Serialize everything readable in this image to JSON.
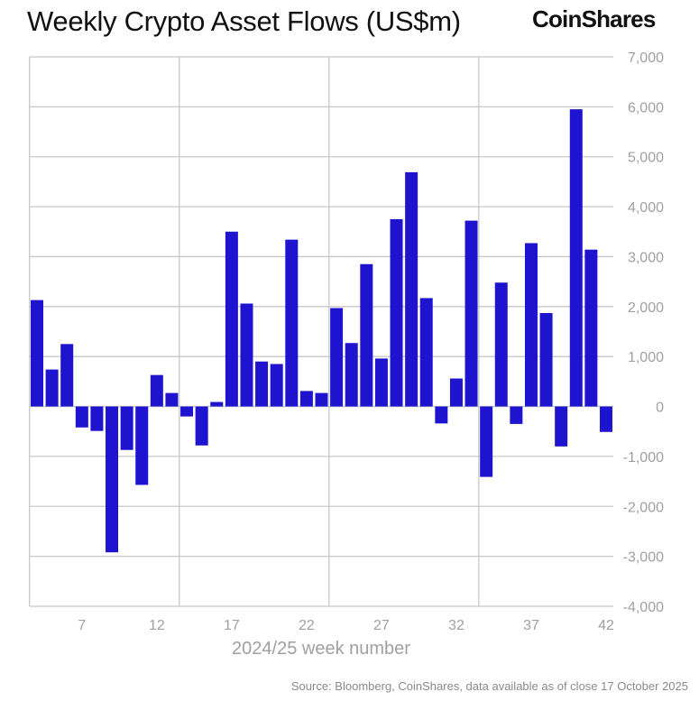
{
  "chart_data": {
    "type": "bar",
    "title": "Weekly Crypto Asset Flows (US$m)",
    "xlabel": "2024/25 week number",
    "ylabel": "",
    "ylim": [
      -4000,
      7000
    ],
    "yticks": [
      -4000,
      -3000,
      -2000,
      -1000,
      0,
      1000,
      2000,
      3000,
      4000,
      5000,
      6000,
      7000
    ],
    "ytick_labels": [
      "-4,000",
      "-3,000",
      "-2,000",
      "-1,000",
      "0",
      "1,000",
      "2,000",
      "3,000",
      "4,000",
      "5,000",
      "6,000",
      "7,000"
    ],
    "xtick_labels": [
      "7",
      "12",
      "17",
      "22",
      "27",
      "32",
      "37",
      "42"
    ],
    "xticks": [
      7,
      12,
      17,
      22,
      27,
      32,
      37,
      42
    ],
    "grid": true,
    "y_axis_side": "right",
    "bar_color": "#1e14d0",
    "categories": [
      4,
      5,
      6,
      7,
      8,
      9,
      10,
      11,
      12,
      13,
      14,
      15,
      16,
      17,
      18,
      19,
      20,
      21,
      22,
      23,
      24,
      25,
      26,
      27,
      28,
      29,
      30,
      31,
      32,
      33,
      34,
      35,
      36,
      37,
      38,
      39,
      40,
      41,
      42
    ],
    "values": [
      2130,
      740,
      1250,
      -420,
      -490,
      -2920,
      -870,
      -1570,
      630,
      270,
      -200,
      -780,
      90,
      3500,
      2060,
      900,
      850,
      3340,
      310,
      270,
      1970,
      1270,
      2850,
      960,
      3750,
      4690,
      2170,
      -340,
      560,
      3720,
      -1410,
      2480,
      -350,
      3270,
      1870,
      -800,
      5950,
      3140,
      -510
    ]
  },
  "logo": "CoinShares",
  "source": "Source: Bloomberg, CoinShares, data available as of close 17 October 2025"
}
